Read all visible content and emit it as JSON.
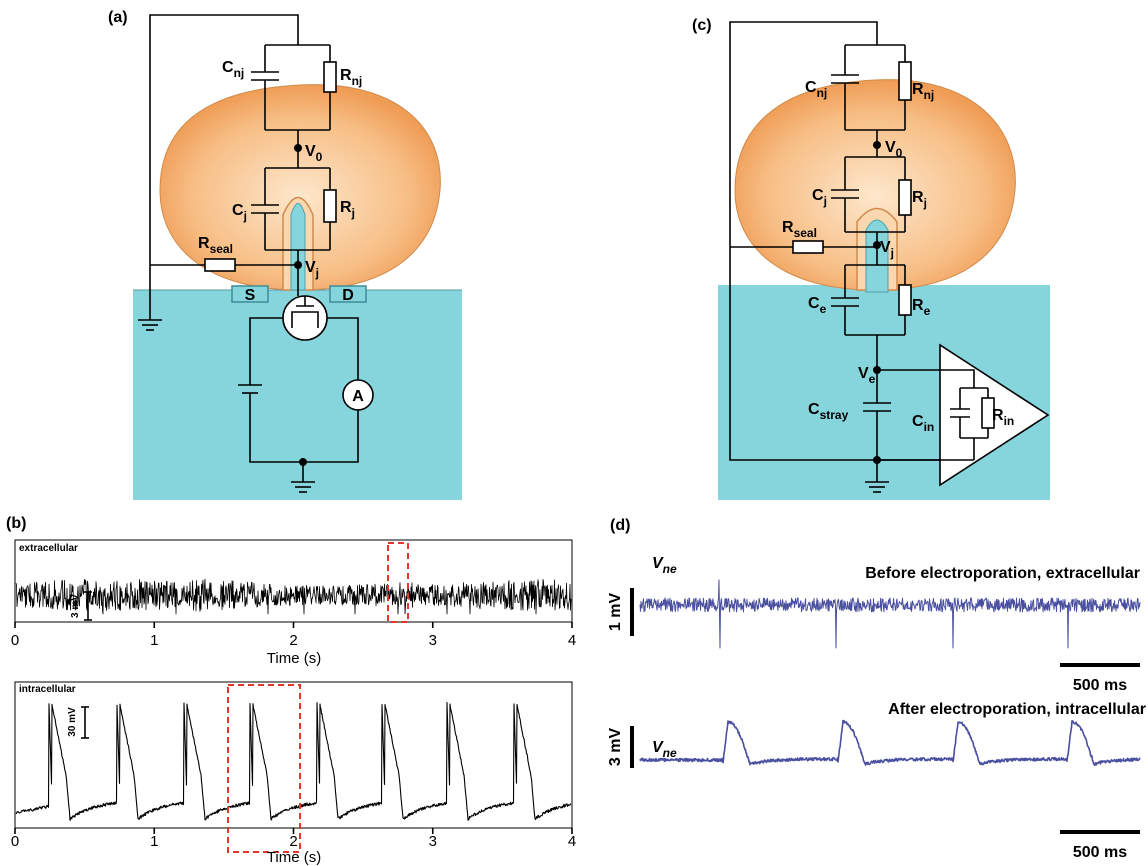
{
  "a": {
    "label": "(a)",
    "Cnj": {
      "main": "C",
      "sub": "nj"
    },
    "Rnj": {
      "main": "R",
      "sub": "nj"
    },
    "V0": {
      "main": "V",
      "sub": "0"
    },
    "Cj": {
      "main": "C",
      "sub": "j"
    },
    "Rj": {
      "main": "R",
      "sub": "j"
    },
    "Rseal": {
      "main": "R",
      "sub": "seal"
    },
    "Vj": {
      "main": "V",
      "sub": "j"
    },
    "S": "S",
    "D": "D",
    "A": "A"
  },
  "b": {
    "label": "(b)",
    "top": {
      "title": "extracellular",
      "scale": "3 mV",
      "ticks": [
        "0",
        "1",
        "2",
        "3",
        "4"
      ],
      "xlabel": "Time (s)"
    },
    "bottom": {
      "title": "intracellular",
      "scale": "30 mV",
      "ticks": [
        "0",
        "1",
        "2",
        "3",
        "4"
      ],
      "xlabel": "Time (s)"
    }
  },
  "c": {
    "label": "(c)",
    "Cnj": {
      "main": "C",
      "sub": "nj"
    },
    "Rnj": {
      "main": "R",
      "sub": "nj"
    },
    "V0": {
      "main": "V",
      "sub": "0"
    },
    "Cj": {
      "main": "C",
      "sub": "j"
    },
    "Rj": {
      "main": "R",
      "sub": "j"
    },
    "Rseal": {
      "main": "R",
      "sub": "seal"
    },
    "Vj": {
      "main": "V",
      "sub": "j"
    },
    "Ce": {
      "main": "C",
      "sub": "e"
    },
    "Re": {
      "main": "R",
      "sub": "e"
    },
    "Ve": {
      "main": "V",
      "sub": "e"
    },
    "Cstray": {
      "main": "C",
      "sub": "stray"
    },
    "Cin": {
      "main": "C",
      "sub": "in"
    },
    "Rin": {
      "main": "R",
      "sub": "in"
    }
  },
  "d": {
    "label": "(d)",
    "top": {
      "signal": {
        "main": "V",
        "sub": "ne"
      },
      "caption": "Before electroporation, extracellular",
      "scale_v": "1 mV",
      "scale_t": "500 ms"
    },
    "bottom": {
      "signal": {
        "main": "V",
        "sub": "ne"
      },
      "caption": "After electroporation, intracellular",
      "scale_v": "3 mV",
      "scale_t": "500 ms"
    }
  }
}
